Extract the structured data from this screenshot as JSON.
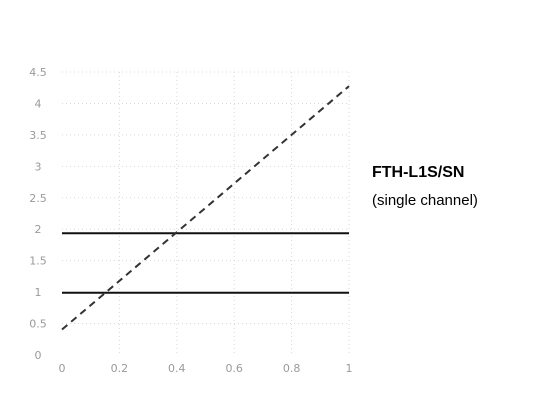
{
  "chart_data": {
    "type": "line",
    "title": "",
    "ylabel": "",
    "xlabel": "",
    "xlim": [
      0,
      1
    ],
    "ylim": [
      0,
      1
    ],
    "grid": true,
    "ytick_labels": [
      "0",
      "0.5",
      "1",
      "1.5",
      "2",
      "2.5",
      "3",
      "3.5",
      "4",
      "4.5"
    ],
    "xtick_labels": [
      "0",
      "0.2",
      "0.4",
      "0.6",
      "0.8",
      "1"
    ],
    "series": [
      {
        "style": "dashed",
        "color": "#333333",
        "x": [
          0,
          1
        ],
        "y": [
          0.09,
          0.95
        ]
      }
    ],
    "reference_lines": [
      {
        "y": 0.43,
        "color": "#111111"
      },
      {
        "y": 0.22,
        "color": "#111111"
      }
    ],
    "annotation": {
      "title": "FTH-L1S/SN",
      "subtitle": "(single channel)"
    }
  }
}
